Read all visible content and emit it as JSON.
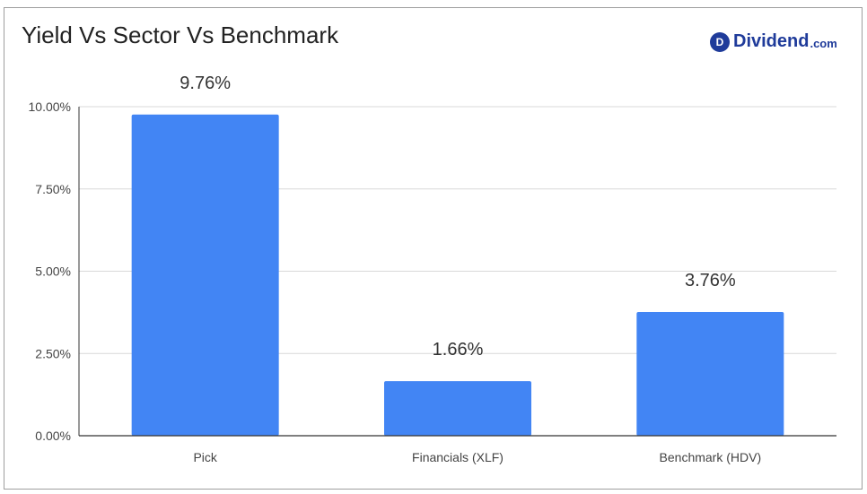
{
  "brand": {
    "mark": "D",
    "name": "Dividend",
    "domain": ".com",
    "color": "#1f3b9a"
  },
  "chart_data": {
    "type": "bar",
    "title": "Yield Vs Sector Vs Benchmark",
    "categories": [
      "Pick",
      "Financials (XLF)",
      "Benchmark (HDV)"
    ],
    "values": [
      9.76,
      1.66,
      3.76
    ],
    "data_labels": [
      "9.76%",
      "1.66%",
      "3.76%"
    ],
    "yticks": [
      0,
      2.5,
      5,
      7.5,
      10
    ],
    "ytick_labels": [
      "0.00%",
      "2.50%",
      "5.00%",
      "7.50%",
      "10.00%"
    ],
    "ylim": [
      0,
      10
    ],
    "xlabel": "",
    "ylabel": "",
    "grid": true,
    "bar_color": "#4285f4",
    "grid_color": "#d9d9d9"
  }
}
